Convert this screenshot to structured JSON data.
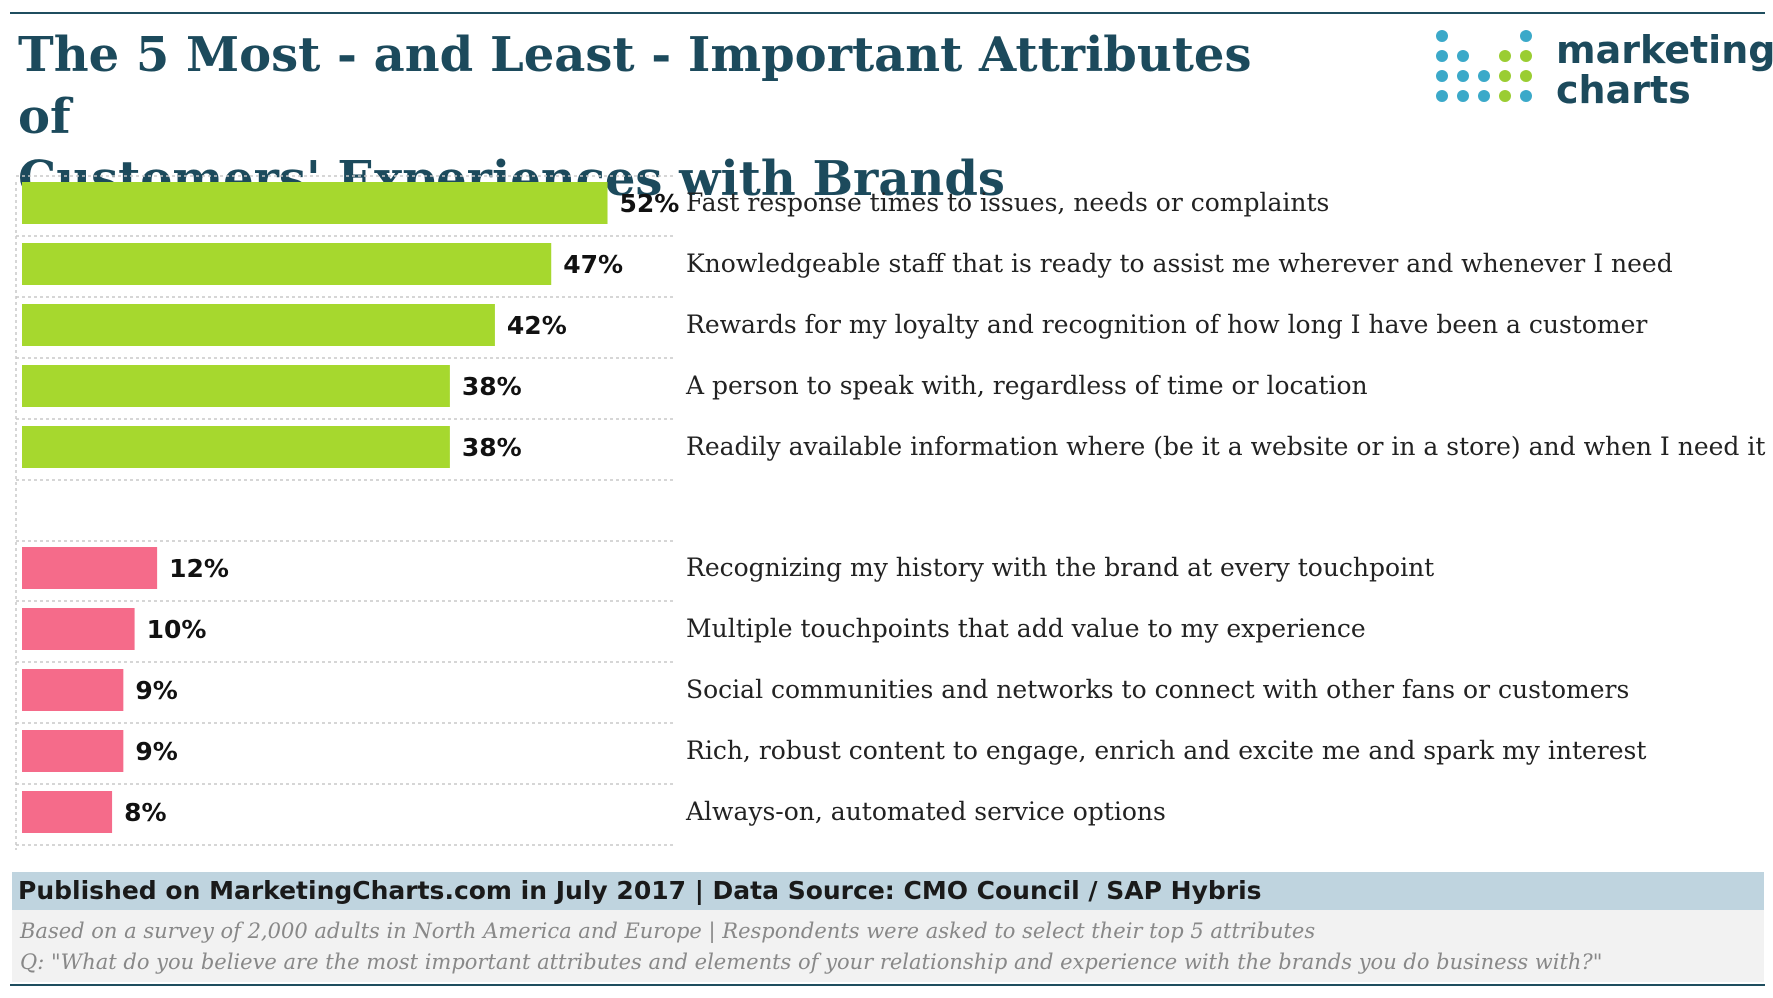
{
  "title_line1": "The 5 Most - and Least - Important Attributes of",
  "title_line2": "Customers' Experiences with Brands",
  "logo": {
    "line1": "marketing",
    "line2": "charts",
    "dot_colors": [
      "#3ba9c9",
      "#9acd32"
    ]
  },
  "chart_data": {
    "type": "bar",
    "orientation": "horizontal",
    "xlim": [
      0,
      100
    ],
    "groups": [
      {
        "color": "#a6d82e",
        "categories": [
          "Fast response times to issues, needs or complaints",
          "Knowledgeable staff that is ready to assist me wherever and whenever I need",
          "Rewards for my loyalty and recognition of how long I have been a customer",
          "A person to speak with, regardless of time or location",
          "Readily available information where (be it a website or in a store) and when I need it"
        ],
        "values": [
          52,
          47,
          42,
          38,
          38
        ],
        "labels": [
          "52%",
          "47%",
          "42%",
          "38%",
          "38%"
        ]
      },
      {
        "color": "#f56b8a",
        "categories": [
          "Recognizing my history with the brand at every touchpoint",
          "Multiple touchpoints that add value to my experience",
          "Social communities and networks to connect with other fans or customers",
          "Rich, robust content to engage, enrich and excite me and spark my interest",
          "Always-on, automated service options"
        ],
        "values": [
          12,
          10,
          9,
          9,
          8
        ],
        "labels": [
          "12%",
          "10%",
          "9%",
          "9%",
          "8%"
        ]
      }
    ]
  },
  "footer": {
    "published": "Published on MarketingCharts.com in July 2017 | Data Source: CMO Council / SAP Hybris",
    "note1": "Based on a survey of 2,000 adults in North America and Europe | Respondents were asked to select their top 5 attributes",
    "note2": "Q: \"What do you believe are the most important attributes and elements of your relationship and experience with the brands you do business with?\""
  }
}
